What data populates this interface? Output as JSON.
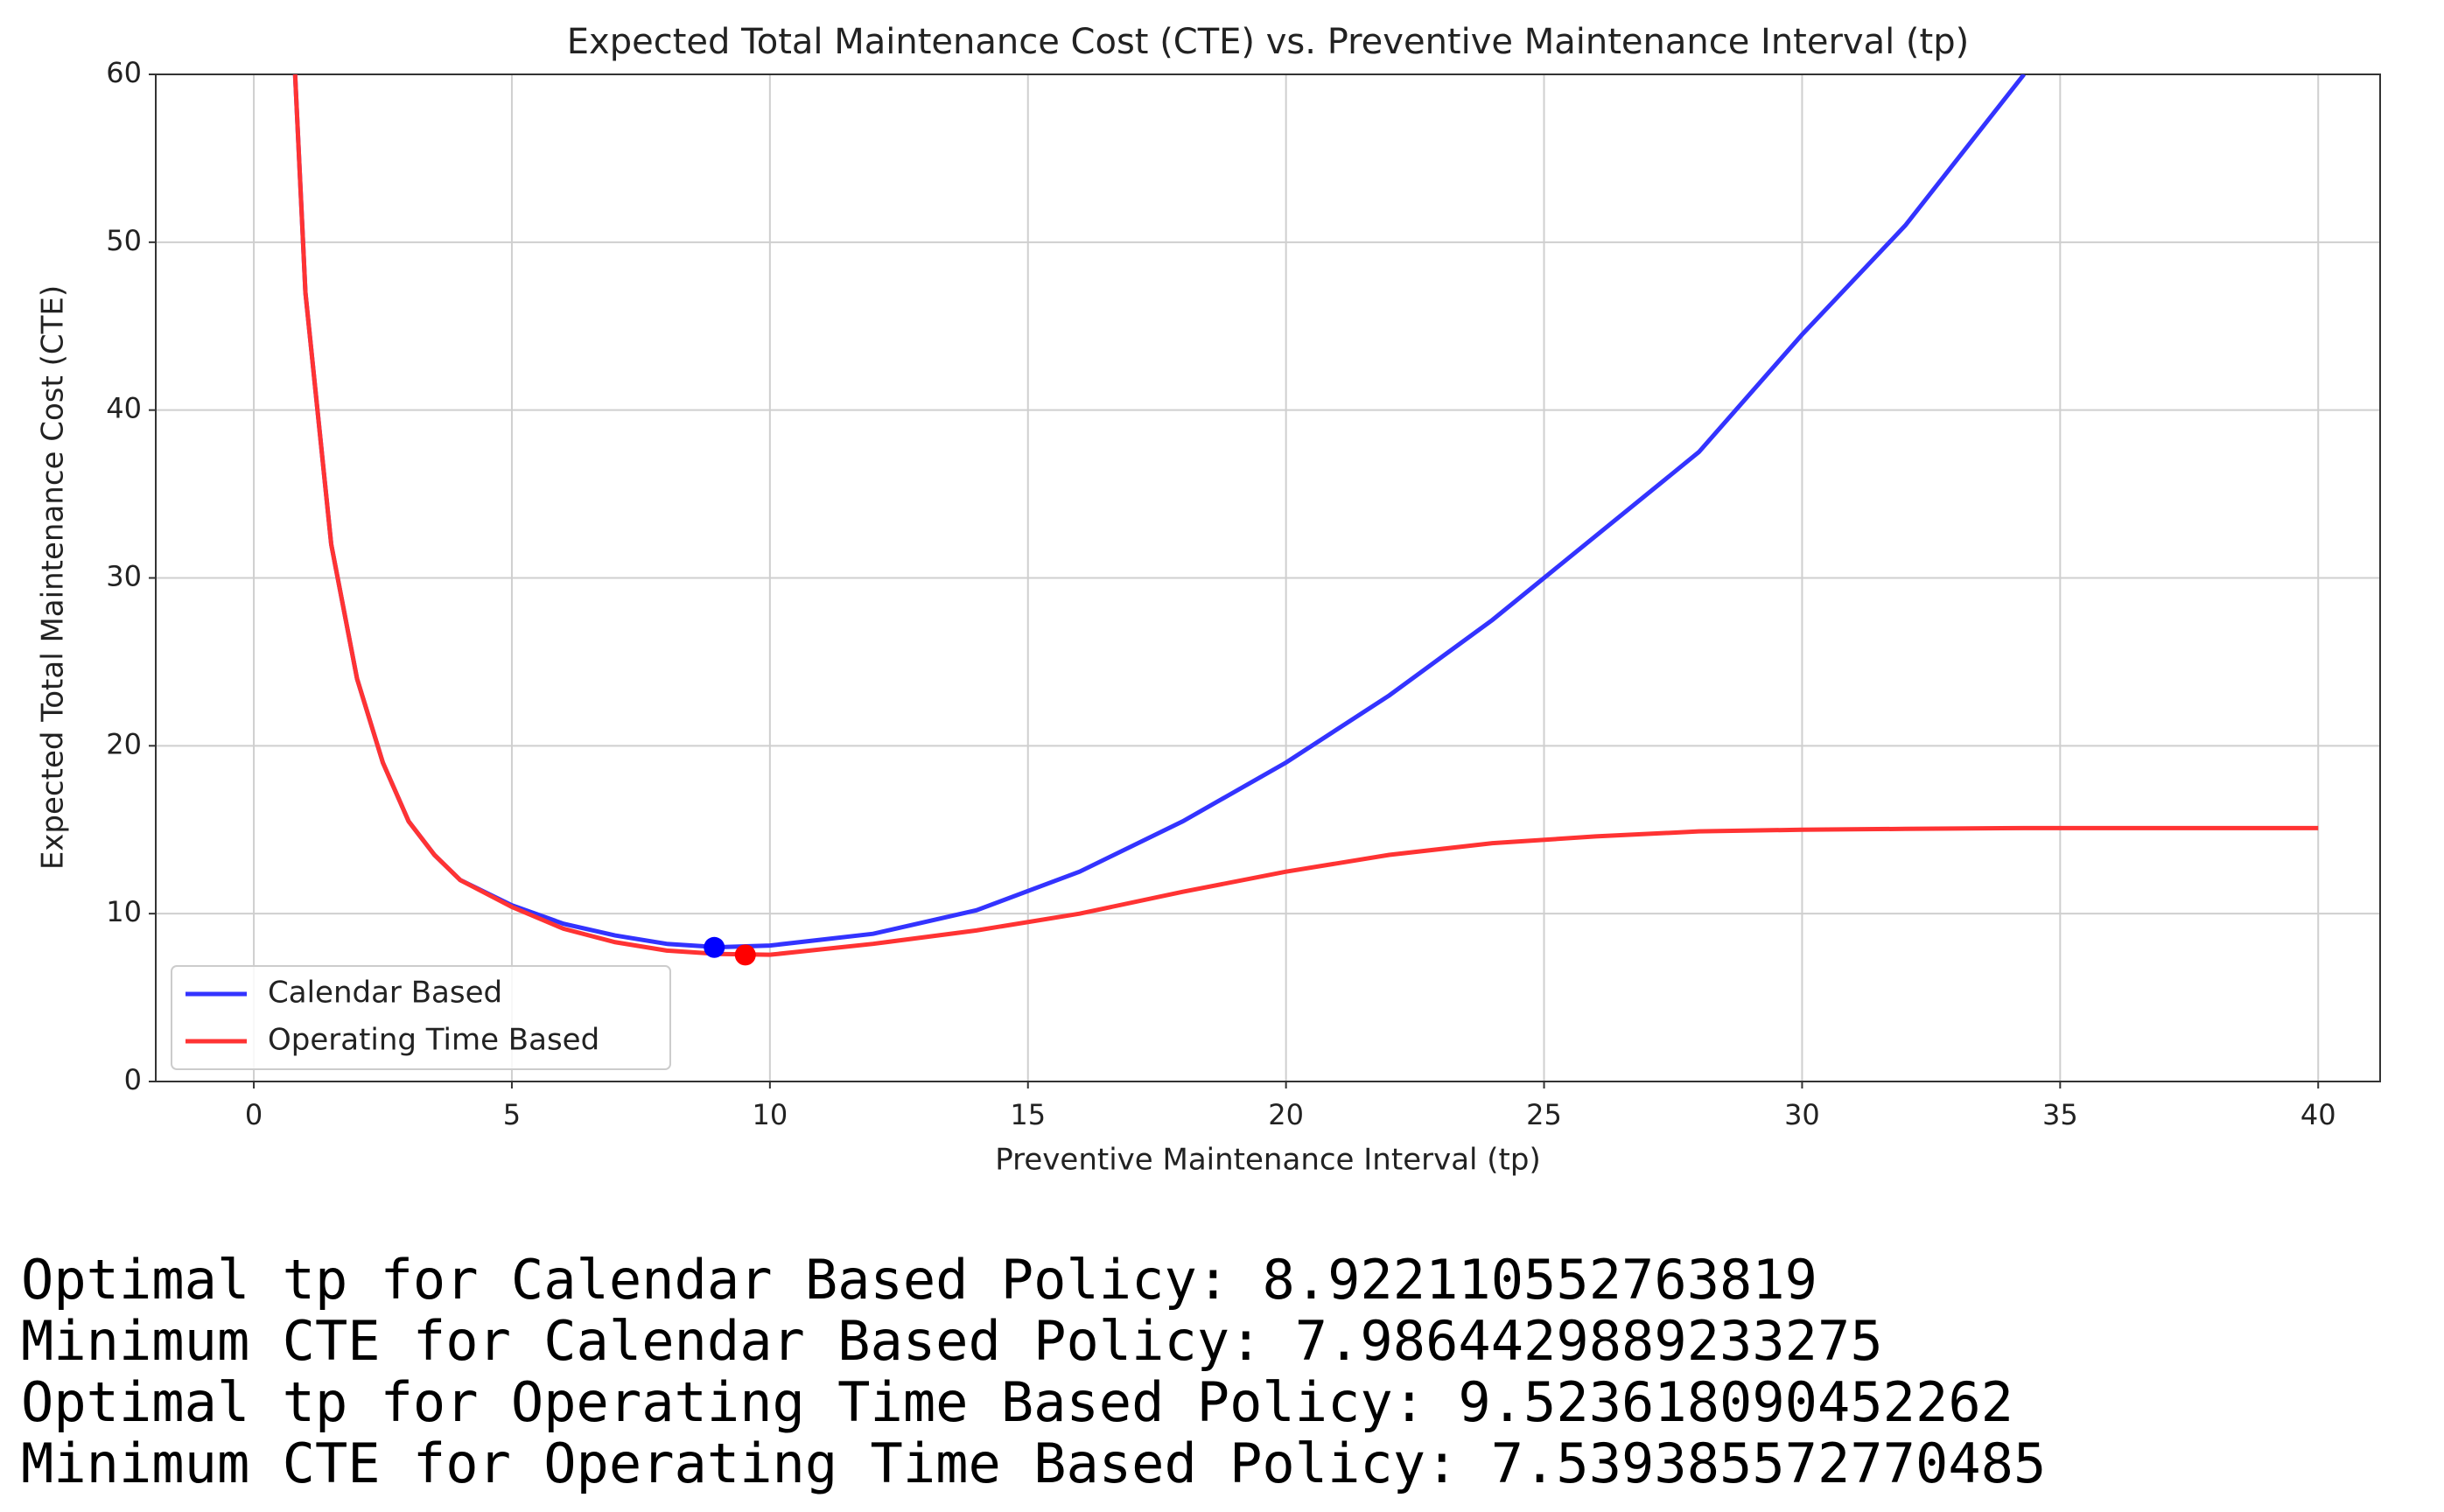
{
  "chart_data": {
    "type": "line",
    "title": "Expected Total Maintenance Cost (CTE) vs. Preventive Maintenance Interval (tp)",
    "x_label": "Preventive Maintenance Interval (tp)",
    "y_label": "Expected Total Maintenance Cost (CTE)",
    "x": [
      0.8,
      1,
      1.5,
      2,
      2.5,
      3,
      3.5,
      4,
      5,
      6,
      7,
      8,
      9,
      10,
      12,
      14,
      16,
      18,
      20,
      22,
      24,
      26,
      28,
      30,
      32,
      34.3,
      36,
      38,
      40
    ],
    "series": [
      {
        "name": "Calendar Based",
        "color": "#3333ff",
        "values": [
          60,
          47,
          32,
          24,
          19,
          15.5,
          13.5,
          12,
          10.5,
          9.4,
          8.7,
          8.2,
          8.0,
          8.1,
          8.8,
          10.2,
          12.5,
          15.5,
          19,
          23,
          27.5,
          32.5,
          37.5,
          44.5,
          51,
          60,
          null,
          null,
          null
        ]
      },
      {
        "name": "Operating Time Based",
        "color": "#ff3333",
        "values": [
          60,
          47,
          32,
          24,
          19,
          15.5,
          13.5,
          12,
          10.4,
          9.1,
          8.3,
          7.8,
          7.6,
          7.55,
          8.2,
          9,
          10,
          11.3,
          12.5,
          13.5,
          14.2,
          14.6,
          14.9,
          15,
          15.05,
          15.1,
          15.1,
          15.1,
          15.1
        ]
      }
    ],
    "optima": [
      {
        "x": 8.922110552763819,
        "y": 7.9864429889233275,
        "color": "#0000ff"
      },
      {
        "x": 9.523618090452262,
        "y": 7.539385572770485,
        "color": "#ff0000"
      }
    ],
    "xlim": [
      -1.9,
      41.2
    ],
    "ylim": [
      0,
      60
    ],
    "xticks": [
      0,
      5,
      10,
      15,
      20,
      25,
      30,
      35,
      40
    ],
    "yticks": [
      0,
      10,
      20,
      30,
      40,
      50,
      60
    ],
    "grid": true,
    "legend": "lower left"
  },
  "console": [
    {
      "label": "Optimal tp for Calendar Based Policy:",
      "ref": "chart_data.optima.0.x"
    },
    {
      "label": "Minimum CTE for Calendar Based Policy:",
      "ref": "chart_data.optima.0.y"
    },
    {
      "label": "Optimal tp for Operating Time Based Policy:",
      "ref": "chart_data.optima.1.x"
    },
    {
      "label": "Minimum CTE for Operating Time Based Policy:",
      "ref": "chart_data.optima.1.y"
    }
  ]
}
